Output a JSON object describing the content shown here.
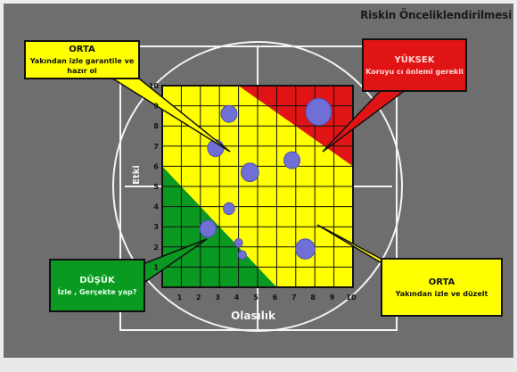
{
  "title": "Riskin Önceliklendirilmesi",
  "axes": {
    "x_label": "Olasılık",
    "y_label": "Etki"
  },
  "x_ticks": [
    "1",
    "2",
    "3",
    "4",
    "5",
    "6",
    "7",
    "8",
    "9",
    "10"
  ],
  "y_ticks": [
    "1",
    "2",
    "3",
    "4",
    "5",
    "6",
    "7",
    "8",
    "9",
    "10"
  ],
  "zones": [
    {
      "name": "low",
      "color": "#0a9a22"
    },
    {
      "name": "medium",
      "color": "#ffff00"
    },
    {
      "name": "high",
      "color": "#e01414"
    }
  ],
  "points": [
    {
      "x": 3.5,
      "y": 8.6,
      "size": 1.0
    },
    {
      "x": 2.8,
      "y": 6.9,
      "size": 1.0
    },
    {
      "x": 4.6,
      "y": 5.7,
      "size": 1.1
    },
    {
      "x": 3.5,
      "y": 3.9,
      "size": 0.7
    },
    {
      "x": 2.4,
      "y": 2.9,
      "size": 1.0
    },
    {
      "x": 4.0,
      "y": 2.2,
      "size": 0.5
    },
    {
      "x": 4.2,
      "y": 1.6,
      "size": 0.5
    },
    {
      "x": 6.8,
      "y": 6.3,
      "size": 1.0
    },
    {
      "x": 8.2,
      "y": 8.7,
      "size": 1.6
    },
    {
      "x": 7.5,
      "y": 1.9,
      "size": 1.2
    }
  ],
  "callouts": {
    "orta_top": {
      "title": "ORTA",
      "text": "Yakından izle garantile ve hazır ol"
    },
    "yuksek": {
      "title": "YÜKSEK",
      "text": "Koruyu cı önlemi gerekli"
    },
    "dusuk": {
      "title": "DÜŞÜK",
      "text": "İzle , Gerçekte yap?"
    },
    "orta_bottom": {
      "title": "ORTA",
      "text": "Yakından izle ve düzelt"
    }
  }
}
